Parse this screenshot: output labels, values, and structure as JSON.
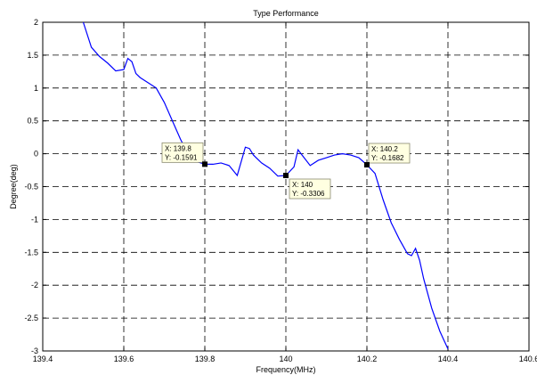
{
  "chart_data": {
    "type": "line",
    "title": "Type Performance",
    "xlabel": "Frequency(MHz)",
    "ylabel": "Degree(deg)",
    "xlim": [
      139.4,
      140.6
    ],
    "ylim": [
      -3,
      2
    ],
    "grid": true,
    "grid_style": "dashed",
    "x_ticks": [
      139.4,
      139.6,
      139.8,
      140,
      140.2,
      140.4,
      140.6
    ],
    "x_tick_labels": [
      "139.4",
      "139.6",
      "139.8",
      "140",
      "140.2",
      "140.4",
      "140.6"
    ],
    "y_ticks": [
      2,
      1.5,
      1,
      0.5,
      0,
      -0.5,
      -1,
      -1.5,
      -2,
      -2.5,
      -3
    ],
    "y_tick_labels": [
      "2",
      "1.5",
      "1",
      "0.5",
      "0",
      "-0.5",
      "-1",
      "-1.5",
      "-2",
      "-2.5",
      "-3"
    ],
    "colors": {
      "series": "#0000ff",
      "axes": "#000000",
      "grid": "#000000",
      "datatip_bg": "#ffffe1",
      "datatip_border": "#8a8a70"
    },
    "series": [
      {
        "x": [
          139.5,
          139.52,
          139.54,
          139.56,
          139.58,
          139.6,
          139.61,
          139.62,
          139.63,
          139.64,
          139.66,
          139.68,
          139.7,
          139.72,
          139.74,
          139.76,
          139.78,
          139.8,
          139.82,
          139.84,
          139.86,
          139.88,
          139.9,
          139.91,
          139.92,
          139.94,
          139.96,
          139.98,
          140.0,
          140.02,
          140.03,
          140.04,
          140.06,
          140.08,
          140.1,
          140.12,
          140.14,
          140.16,
          140.18,
          140.2,
          140.22,
          140.24,
          140.26,
          140.28,
          140.3,
          140.31,
          140.32,
          140.33,
          140.34,
          140.36,
          140.38,
          140.4
        ],
        "y": [
          2.0,
          1.62,
          1.48,
          1.38,
          1.26,
          1.28,
          1.45,
          1.4,
          1.22,
          1.16,
          1.08,
          1.0,
          0.78,
          0.5,
          0.22,
          -0.02,
          -0.12,
          -0.159,
          -0.16,
          -0.14,
          -0.18,
          -0.33,
          0.1,
          0.08,
          -0.02,
          -0.14,
          -0.22,
          -0.34,
          -0.331,
          -0.2,
          0.06,
          -0.02,
          -0.18,
          -0.1,
          -0.06,
          -0.02,
          0.0,
          -0.02,
          -0.06,
          -0.168,
          -0.3,
          -0.7,
          -1.05,
          -1.3,
          -1.52,
          -1.55,
          -1.44,
          -1.62,
          -1.9,
          -2.35,
          -2.7,
          -2.97
        ]
      }
    ],
    "datatips": [
      {
        "x": 139.8,
        "y": -0.1591,
        "x_label": "X: 139.8",
        "y_label": "Y: -0.1591",
        "side": "left"
      },
      {
        "x": 140.0,
        "y": -0.3306,
        "x_label": "X: 140",
        "y_label": "Y: -0.3306",
        "side": "below-right"
      },
      {
        "x": 140.2,
        "y": -0.1682,
        "x_label": "X: 140.2",
        "y_label": "Y: -0.1682",
        "side": "right"
      }
    ]
  }
}
